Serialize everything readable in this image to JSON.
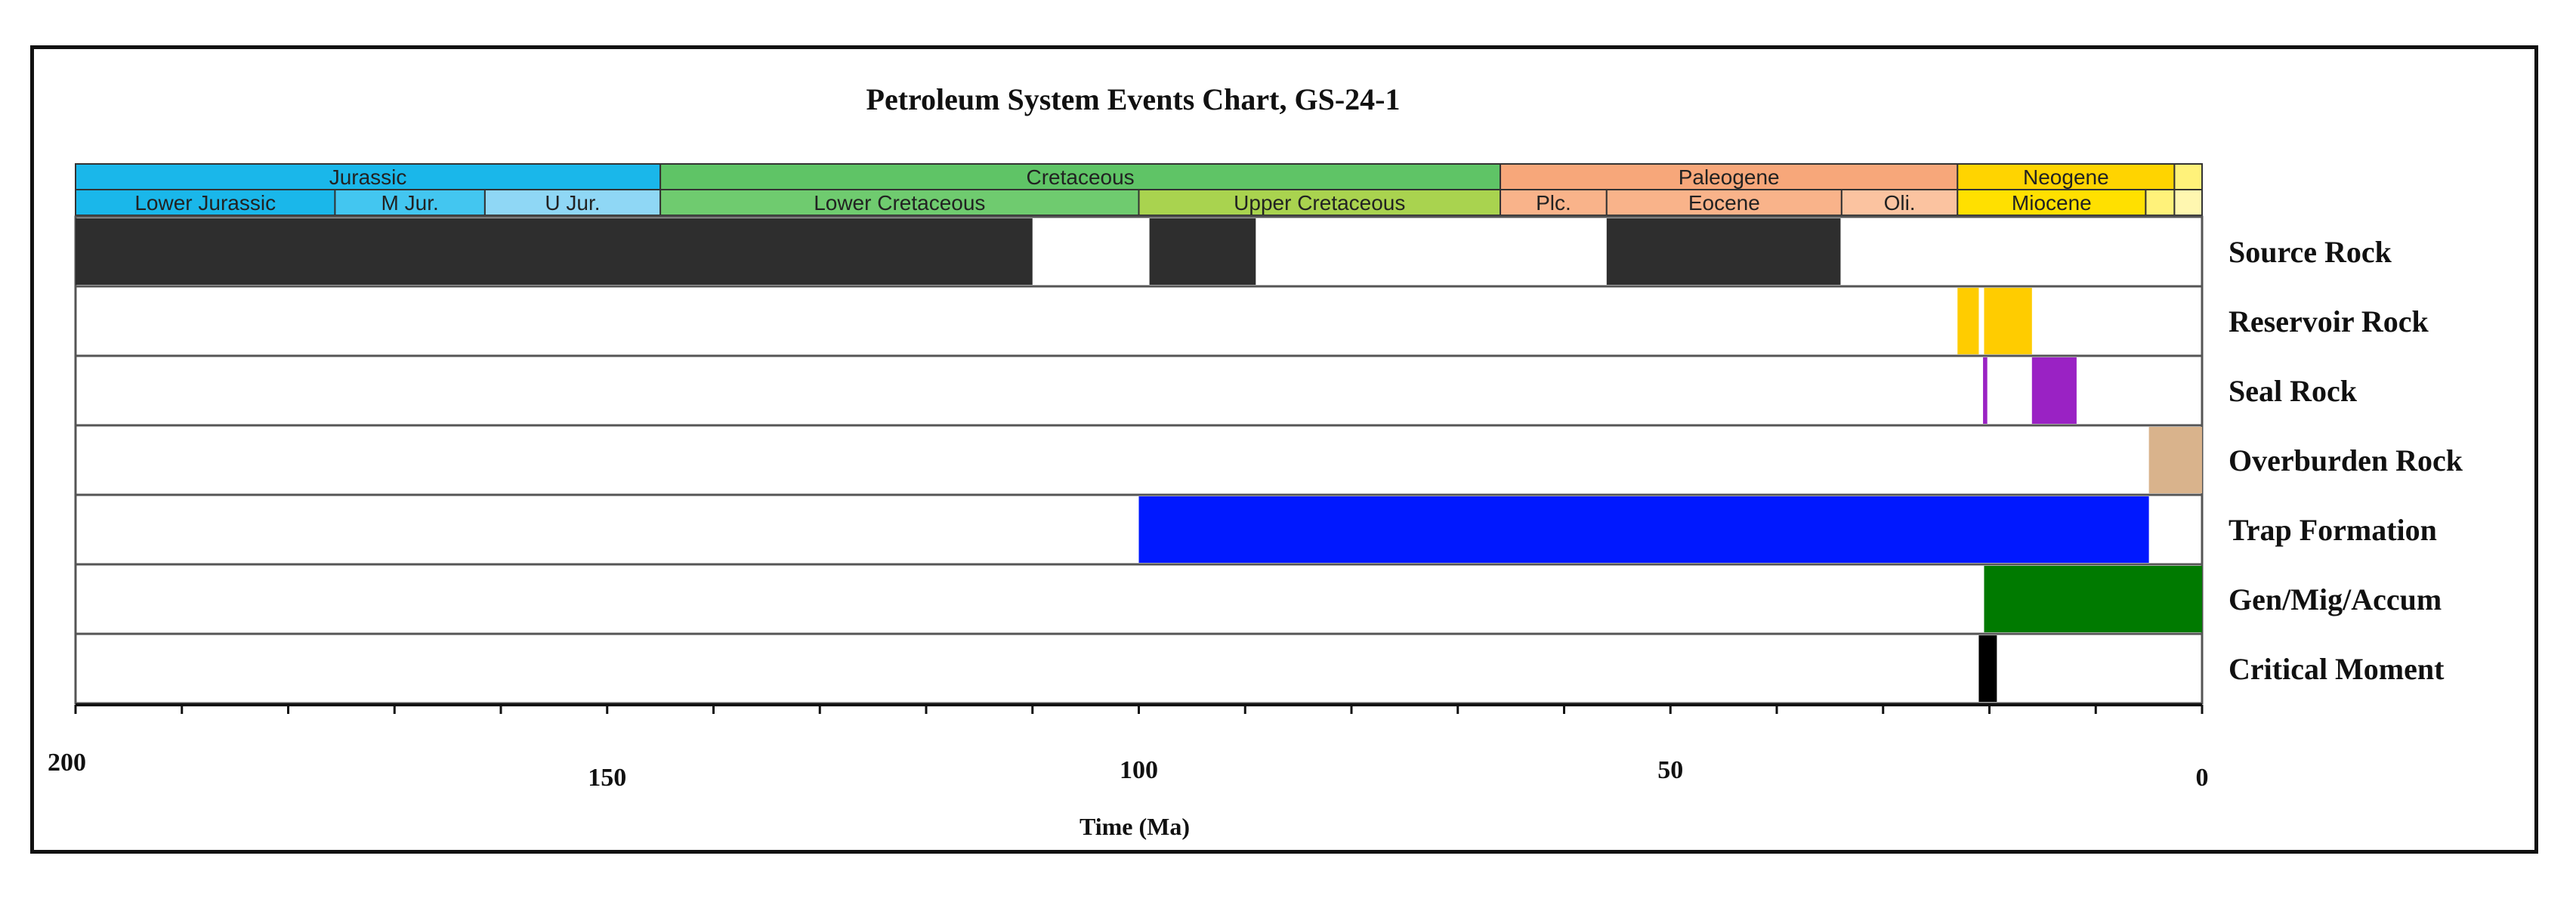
{
  "chart_data": {
    "type": "bar",
    "title": "Petroleum System Events Chart, GS-24-1",
    "xlabel": "Time (Ma)",
    "ylabel": "",
    "xlim": [
      200,
      0
    ],
    "x_reversed": true,
    "grid": false,
    "legend": "none",
    "x_tick_labels": [
      {
        "value": 200,
        "label": "200"
      },
      {
        "value": 150,
        "label": "150"
      },
      {
        "value": 100,
        "label": "100"
      },
      {
        "value": 50,
        "label": "50"
      },
      {
        "value": 0,
        "label": "0"
      }
    ],
    "minor_tick_step": 10,
    "time_scale": {
      "periods": [
        {
          "name": "Jurassic",
          "start": 200,
          "end": 145,
          "color": "#1ab7ea"
        },
        {
          "name": "Cretaceous",
          "start": 145,
          "end": 66,
          "color": "#5fc466"
        },
        {
          "name": "Paleogene",
          "start": 66,
          "end": 23,
          "color": "#f7a77a"
        },
        {
          "name": "Neogene",
          "start": 23,
          "end": 2.6,
          "color": "#ffd400"
        },
        {
          "name": "",
          "start": 2.6,
          "end": 0,
          "color": "#fff27a"
        }
      ],
      "epochs": [
        {
          "name": "Lower Jurassic",
          "start": 200,
          "end": 175.6,
          "color": "#1ab7ea"
        },
        {
          "name": "M Jur.",
          "start": 175.6,
          "end": 161.5,
          "color": "#43c6f0"
        },
        {
          "name": "U Jur.",
          "start": 161.5,
          "end": 145,
          "color": "#8fd7f5"
        },
        {
          "name": "Lower Cretaceous",
          "start": 145,
          "end": 100,
          "color": "#6fcb6f"
        },
        {
          "name": "Upper Cretaceous",
          "start": 100,
          "end": 66,
          "color": "#a9d34f"
        },
        {
          "name": "Plc.",
          "start": 66,
          "end": 56,
          "color": "#f9b38a"
        },
        {
          "name": "Eocene",
          "start": 56,
          "end": 33.9,
          "color": "#f9b38a"
        },
        {
          "name": "Oli.",
          "start": 33.9,
          "end": 23,
          "color": "#fbc3a0"
        },
        {
          "name": "Miocene",
          "start": 23,
          "end": 5.3,
          "color": "#ffe000"
        },
        {
          "name": "",
          "start": 5.3,
          "end": 2.6,
          "color": "#fff27a"
        },
        {
          "name": "",
          "start": 2.6,
          "end": 0,
          "color": "#fff7b0"
        }
      ]
    },
    "series": [
      {
        "name": "Source Rock",
        "color": "#2e2e2e",
        "intervals": [
          [
            200,
            110
          ],
          [
            99,
            89
          ],
          [
            56,
            34
          ]
        ]
      },
      {
        "name": "Reservoir Rock",
        "color": "#ffcc00",
        "intervals": [
          [
            23,
            21
          ],
          [
            20.5,
            16
          ]
        ]
      },
      {
        "name": "Seal Rock",
        "color": "#9a22c4",
        "intervals": [
          [
            20.6,
            20.2
          ],
          [
            16,
            11.8
          ]
        ]
      },
      {
        "name": "Overburden Rock",
        "color": "#d9b38c",
        "intervals": [
          [
            5,
            0
          ]
        ]
      },
      {
        "name": "Trap Formation",
        "color": "#0018ff",
        "intervals": [
          [
            100,
            5
          ]
        ]
      },
      {
        "name": "Gen/Mig/Accum",
        "color": "#007a00",
        "intervals": [
          [
            20.5,
            0
          ]
        ]
      },
      {
        "name": "Critical Moment",
        "color": "#000000",
        "intervals": [
          [
            21,
            19.3
          ]
        ]
      }
    ]
  }
}
